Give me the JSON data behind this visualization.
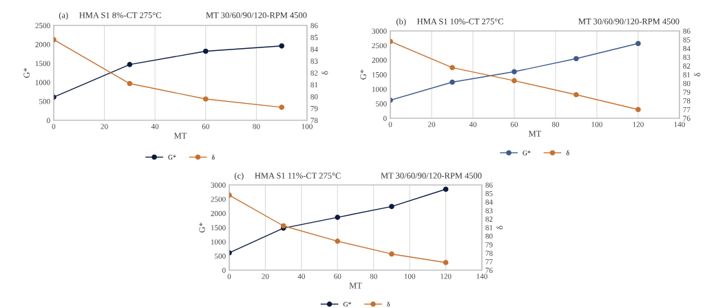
{
  "chart_data": [
    {
      "type": "line",
      "title": "(a)     HMA S1 8%-CT 275°C",
      "subtitle": "MT 30/60/90/120-RPM 4500",
      "xlabel": "MT",
      "ylabel": "G*",
      "y2label": "δ",
      "x": [
        0,
        30,
        60,
        90
      ],
      "xlim": [
        0,
        100
      ],
      "xticks": [
        0,
        20,
        40,
        60,
        80,
        100
      ],
      "ylim": [
        0,
        2500
      ],
      "yticks": [
        0,
        500,
        1000,
        1500,
        2000,
        2500
      ],
      "y2lim": [
        78,
        86
      ],
      "y2ticks": [
        78,
        79,
        80,
        81,
        82,
        83,
        84,
        85,
        86
      ],
      "grid": "x",
      "legend": "bottom",
      "marker": "circle",
      "line_style": "solid",
      "series": [
        {
          "name": "G*",
          "color": "#0b1a40",
          "values": [
            610,
            1470,
            1820,
            1960
          ]
        },
        {
          "name": "δ",
          "color": "#c8702e",
          "axis": "y2",
          "values": [
            84.8,
            81.1,
            79.8,
            79.1
          ]
        }
      ]
    },
    {
      "type": "line",
      "title": "(b)     HMA S1 10%-CT 275°C",
      "subtitle": "MT 30/60/90/120-RPM 4500",
      "xlabel": "MT",
      "ylabel": "G*",
      "y2label": "δ",
      "x": [
        0,
        30,
        60,
        90,
        120
      ],
      "xlim": [
        0,
        140
      ],
      "xticks": [
        0,
        20,
        40,
        60,
        80,
        100,
        120,
        140
      ],
      "ylim": [
        0,
        3000
      ],
      "yticks": [
        0,
        500,
        1000,
        1500,
        2000,
        2500,
        3000
      ],
      "y2lim": [
        76,
        86
      ],
      "y2ticks": [
        76,
        77,
        78,
        79,
        80,
        81,
        82,
        83,
        84,
        85,
        86
      ],
      "grid": "x",
      "legend": "bottom",
      "marker": "circle",
      "line_style": "solid",
      "series": [
        {
          "name": "G*",
          "color": "#3d5a8c",
          "values": [
            620,
            1240,
            1600,
            2050,
            2570
          ]
        },
        {
          "name": "δ",
          "color": "#c8702e",
          "axis": "y2",
          "values": [
            84.8,
            81.8,
            80.3,
            78.7,
            77.0
          ]
        }
      ]
    },
    {
      "type": "line",
      "title": "(c)     HMA S1 11%-CT 275°C",
      "subtitle": "MT 30/60/90/120-RPM 4500",
      "xlabel": "MT",
      "ylabel": "G*",
      "y2label": "δ",
      "x": [
        0,
        30,
        60,
        90,
        120
      ],
      "xlim": [
        0,
        140
      ],
      "xticks": [
        0,
        20,
        40,
        60,
        80,
        100,
        120,
        140
      ],
      "ylim": [
        0,
        3000
      ],
      "yticks": [
        0,
        500,
        1000,
        1500,
        2000,
        2500,
        3000
      ],
      "y2lim": [
        76,
        86
      ],
      "y2ticks": [
        76,
        77,
        78,
        79,
        80,
        81,
        82,
        83,
        84,
        85,
        86
      ],
      "grid": "x",
      "legend": "bottom",
      "marker": "circle",
      "line_style": "solid",
      "series": [
        {
          "name": "G*",
          "color": "#0b1a40",
          "values": [
            610,
            1480,
            1860,
            2240,
            2850
          ]
        },
        {
          "name": "δ",
          "color": "#c8702e",
          "axis": "y2",
          "values": [
            84.8,
            81.2,
            79.4,
            77.9,
            76.9
          ]
        }
      ]
    }
  ]
}
